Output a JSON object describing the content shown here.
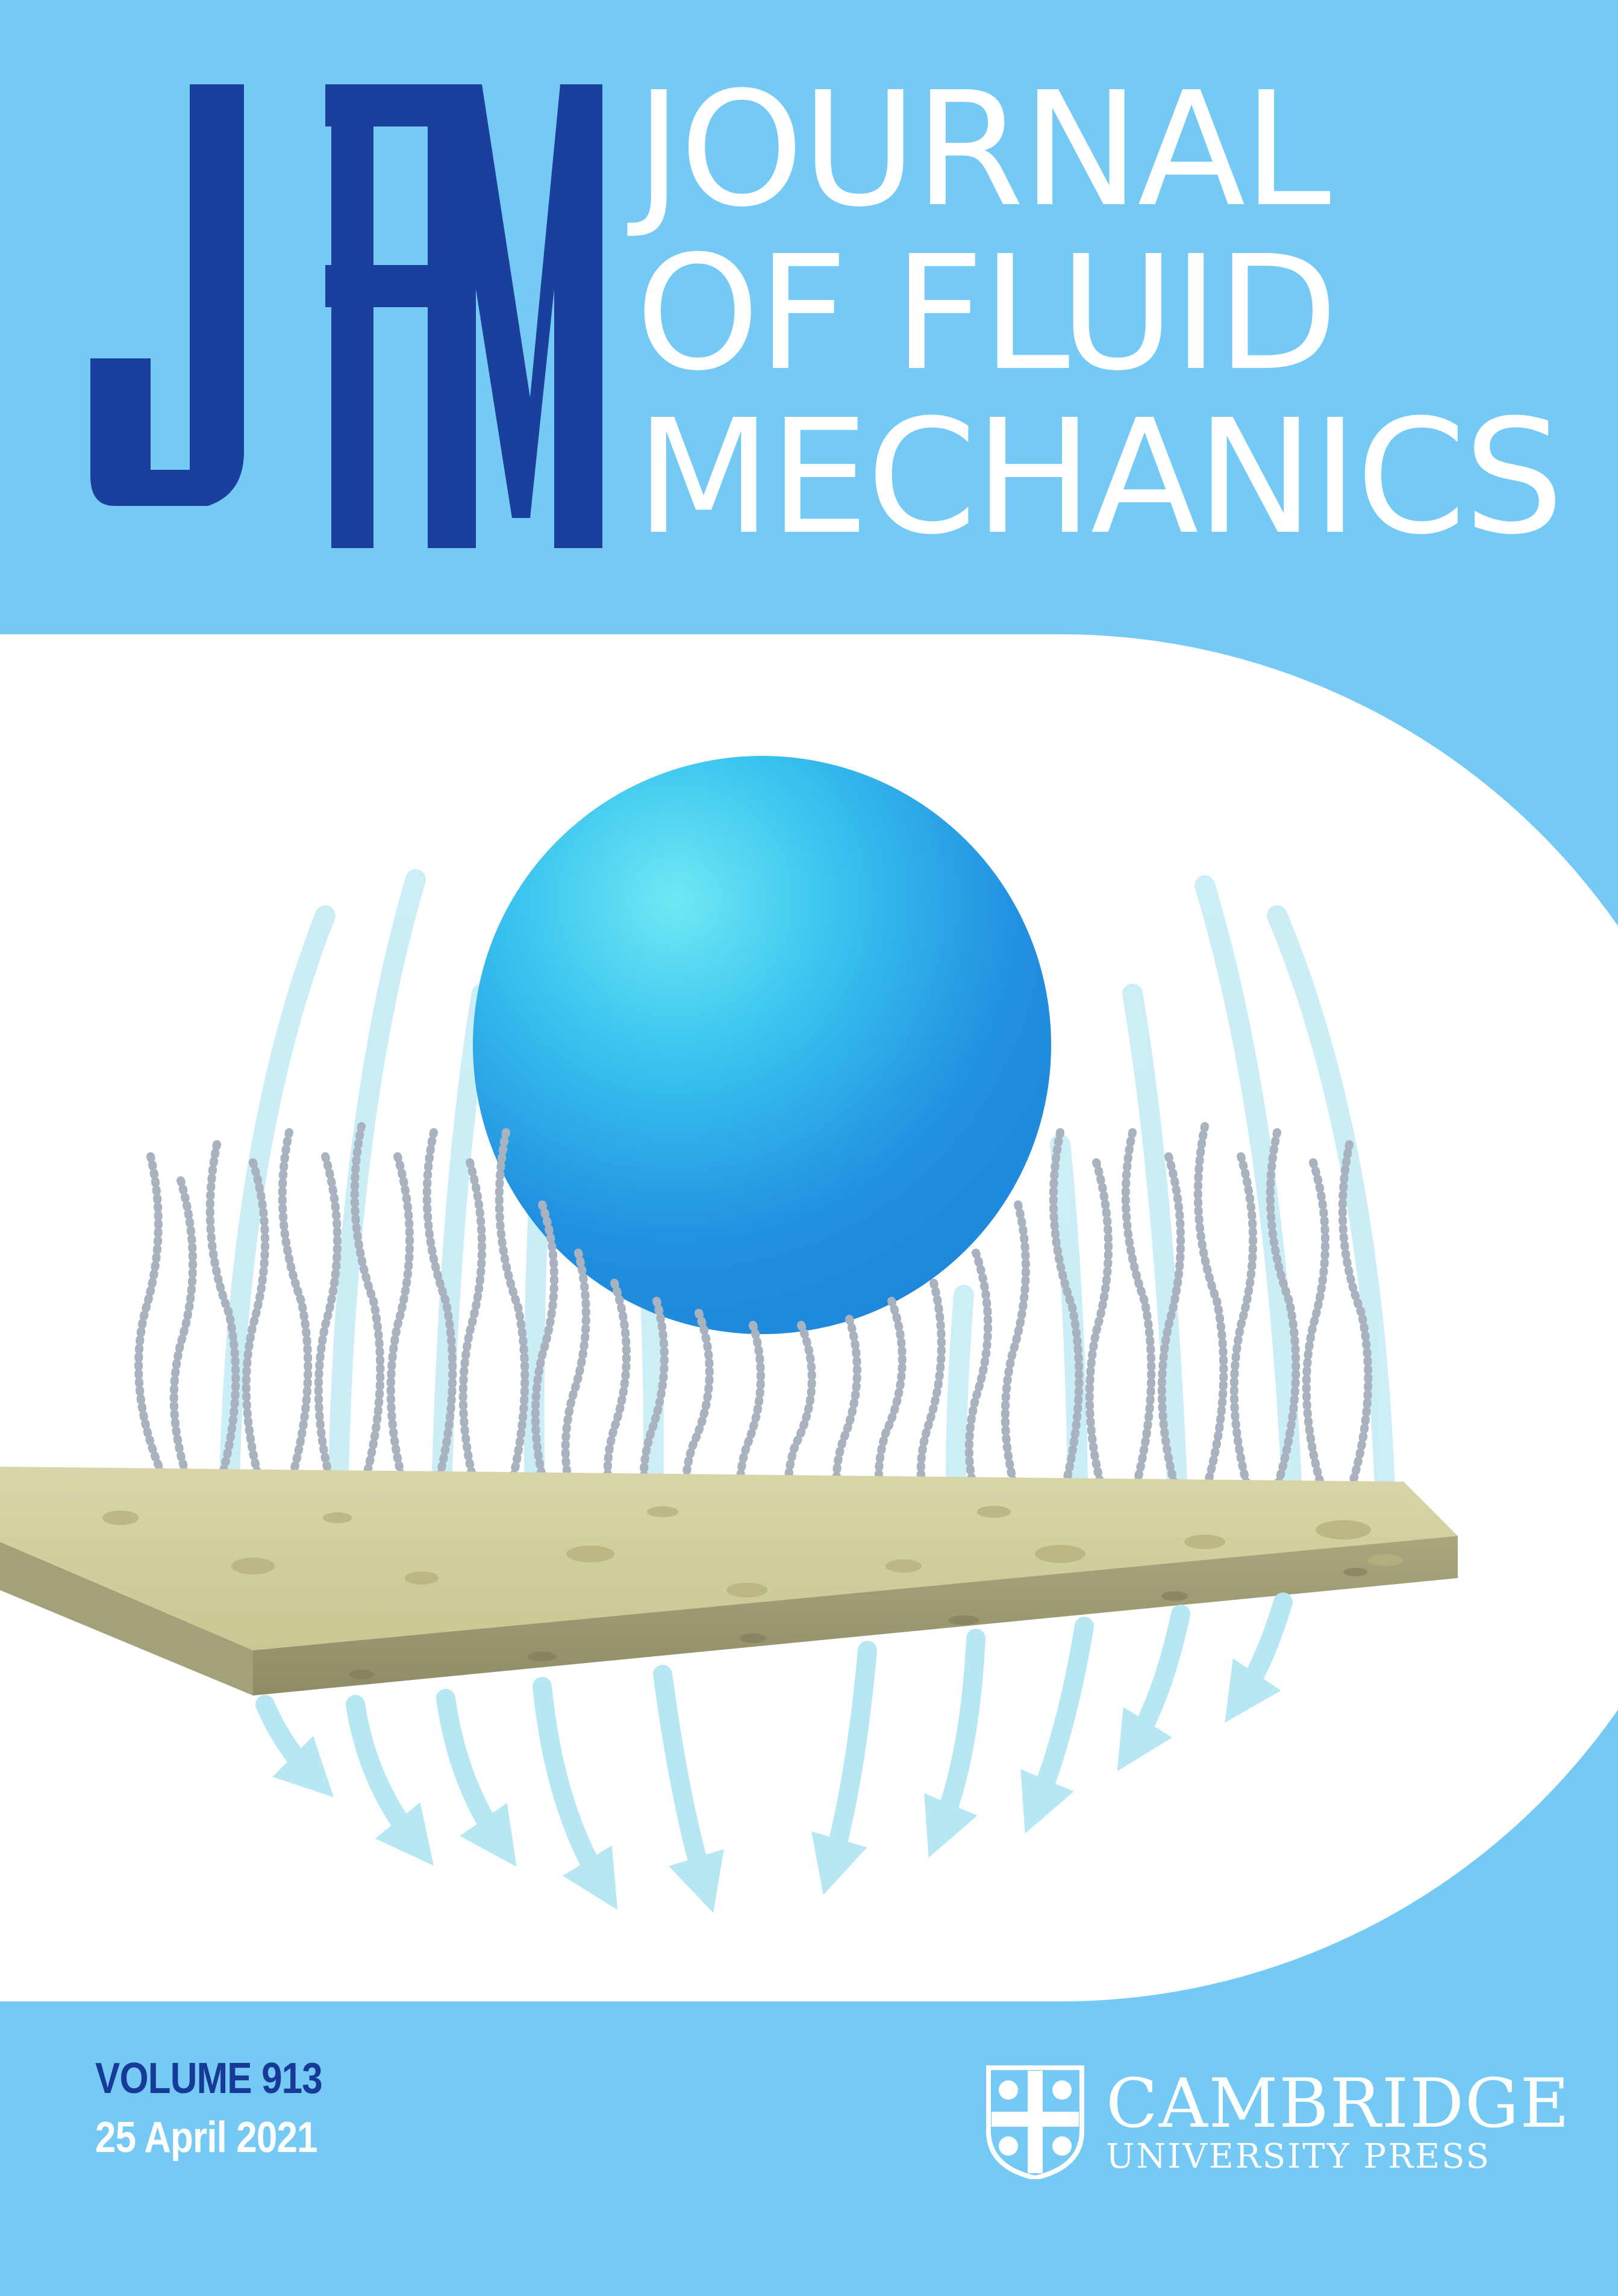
{
  "journal": {
    "logo_text": "JFM",
    "title_lines": [
      "JOURNAL",
      "OF FLUID",
      "MECHANICS"
    ]
  },
  "issue": {
    "volume": "VOLUME 913",
    "date": "25 April 2021"
  },
  "publisher": {
    "name": "CAMBRIDGE",
    "sub": "UNIVERSITY PRESS"
  },
  "colors": {
    "background": "#74c9f5",
    "logo": "#1a3f9c",
    "sphere": "#3aa6ea",
    "substrate": "#cfcc9b"
  },
  "icons": {
    "publisher_crest": "university-crest-icon"
  }
}
